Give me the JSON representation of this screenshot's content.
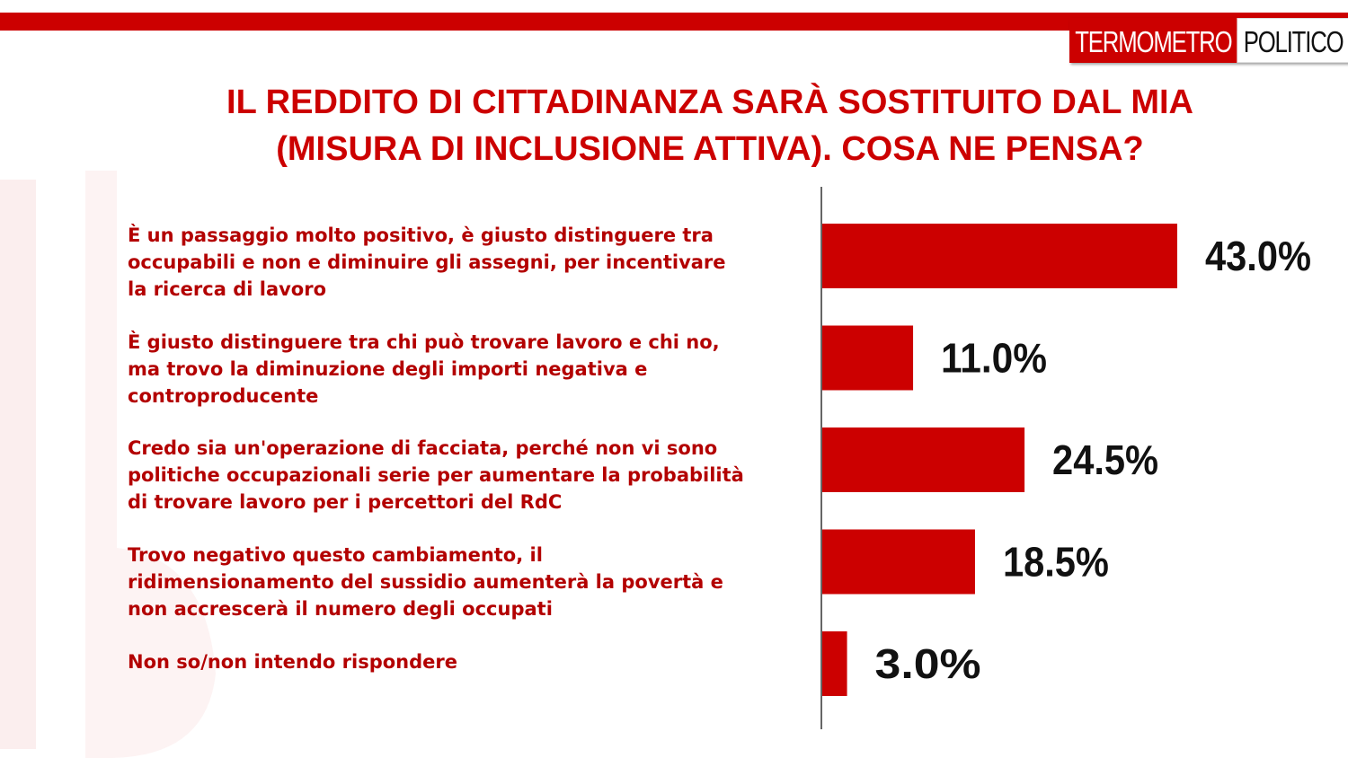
{
  "header": {
    "logo_left": "TERMOMETRO",
    "logo_right": "POLITICO"
  },
  "title_lines": [
    "IL REDDITO DI CITTADINANZA SARÀ SOSTITUITO DAL MIA",
    "(MISURA DI INCLUSIONE ATTIVA). COSA NE PENSA?"
  ],
  "colors": {
    "accent": "#cc0000",
    "bar": "#cc0000",
    "text_red": "#b30000"
  },
  "chart_data": {
    "type": "bar",
    "orientation": "horizontal",
    "title": "IL REDDITO DI CITTADINANZA SARÀ SOSTITUITO DAL MIA (MISURA DI INCLUSIONE ATTIVA). COSA NE PENSA?",
    "categories": [
      "È un passaggio molto positivo, è giusto distinguere tra\noccupabili e non e diminuire gli assegni, per incentivare\nla ricerca di lavoro",
      "È giusto distinguere tra chi può trovare lavoro e chi no,\nma trovo la diminuzione degli importi negativa e\ncontroproducente",
      "Credo sia un'operazione di facciata, perché non vi sono\npolitiche occupazionali serie per aumentare la probabilità\ndi trovare lavoro per i percettori del RdC",
      "Trovo negativo questo cambiamento, il\nridimensionamento del sussidio aumenterà  la povertà  e\nnon accrescerà  il numero degli occupati",
      "Non so/non intendo rispondere"
    ],
    "values": [
      43.0,
      11.0,
      24.5,
      18.5,
      3.0
    ],
    "value_labels": [
      "43.0%",
      "11.0%",
      "24.5%",
      "18.5%",
      "3.0%"
    ],
    "grid": false,
    "legend": "none"
  }
}
